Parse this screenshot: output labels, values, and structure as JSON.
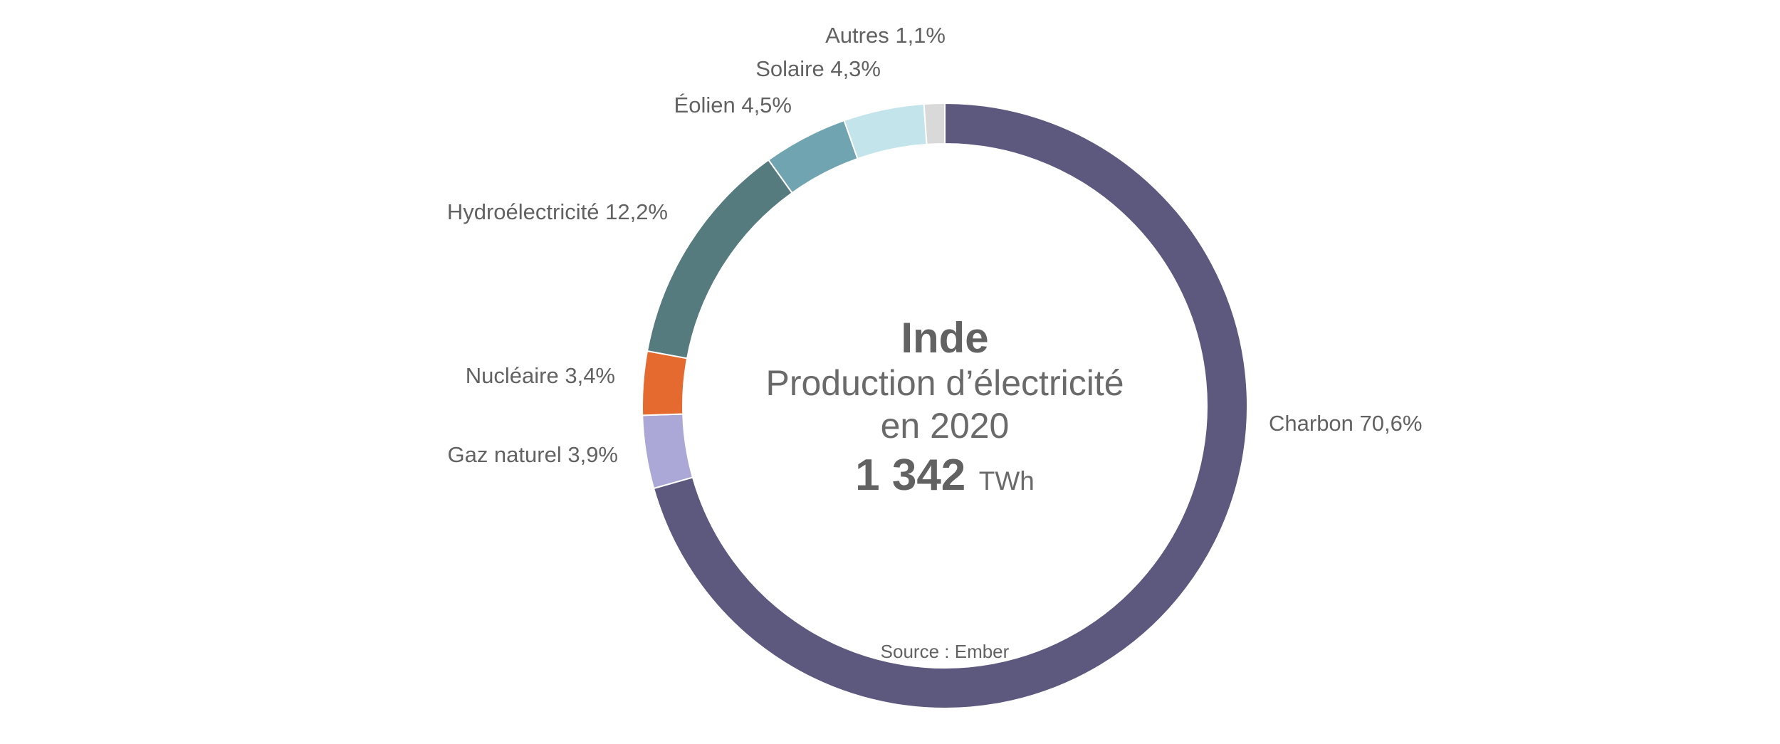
{
  "chart_data": {
    "type": "pie",
    "title": "Inde",
    "subtitle_line1": "Production d’électricité",
    "subtitle_line2": "en 2020",
    "total_value": "1 342",
    "total_unit": "TWh",
    "source": "Source : Ember",
    "slices": [
      {
        "name": "Charbon",
        "value": 70.6,
        "label": "Charbon 70,6%",
        "color": "#5c587e"
      },
      {
        "name": "Gaz naturel",
        "value": 3.9,
        "label": "Gaz naturel 3,9%",
        "color": "#aba8d8"
      },
      {
        "name": "Nucléaire",
        "value": 3.4,
        "label": "Nucléaire 3,4%",
        "color": "#e56a30"
      },
      {
        "name": "Hydroélectricité",
        "value": 12.2,
        "label": "Hydroélectricité 12,2%",
        "color": "#557b7f"
      },
      {
        "name": "Éolien",
        "value": 4.5,
        "label": "Éolien 4,5%",
        "color": "#6fa4b0"
      },
      {
        "name": "Solaire",
        "value": 4.3,
        "label": "Solaire 4,3%",
        "color": "#c2e4ea"
      },
      {
        "name": "Autres",
        "value": 1.1,
        "label": "Autres 1,1%",
        "color": "#d9d9d9"
      }
    ]
  }
}
